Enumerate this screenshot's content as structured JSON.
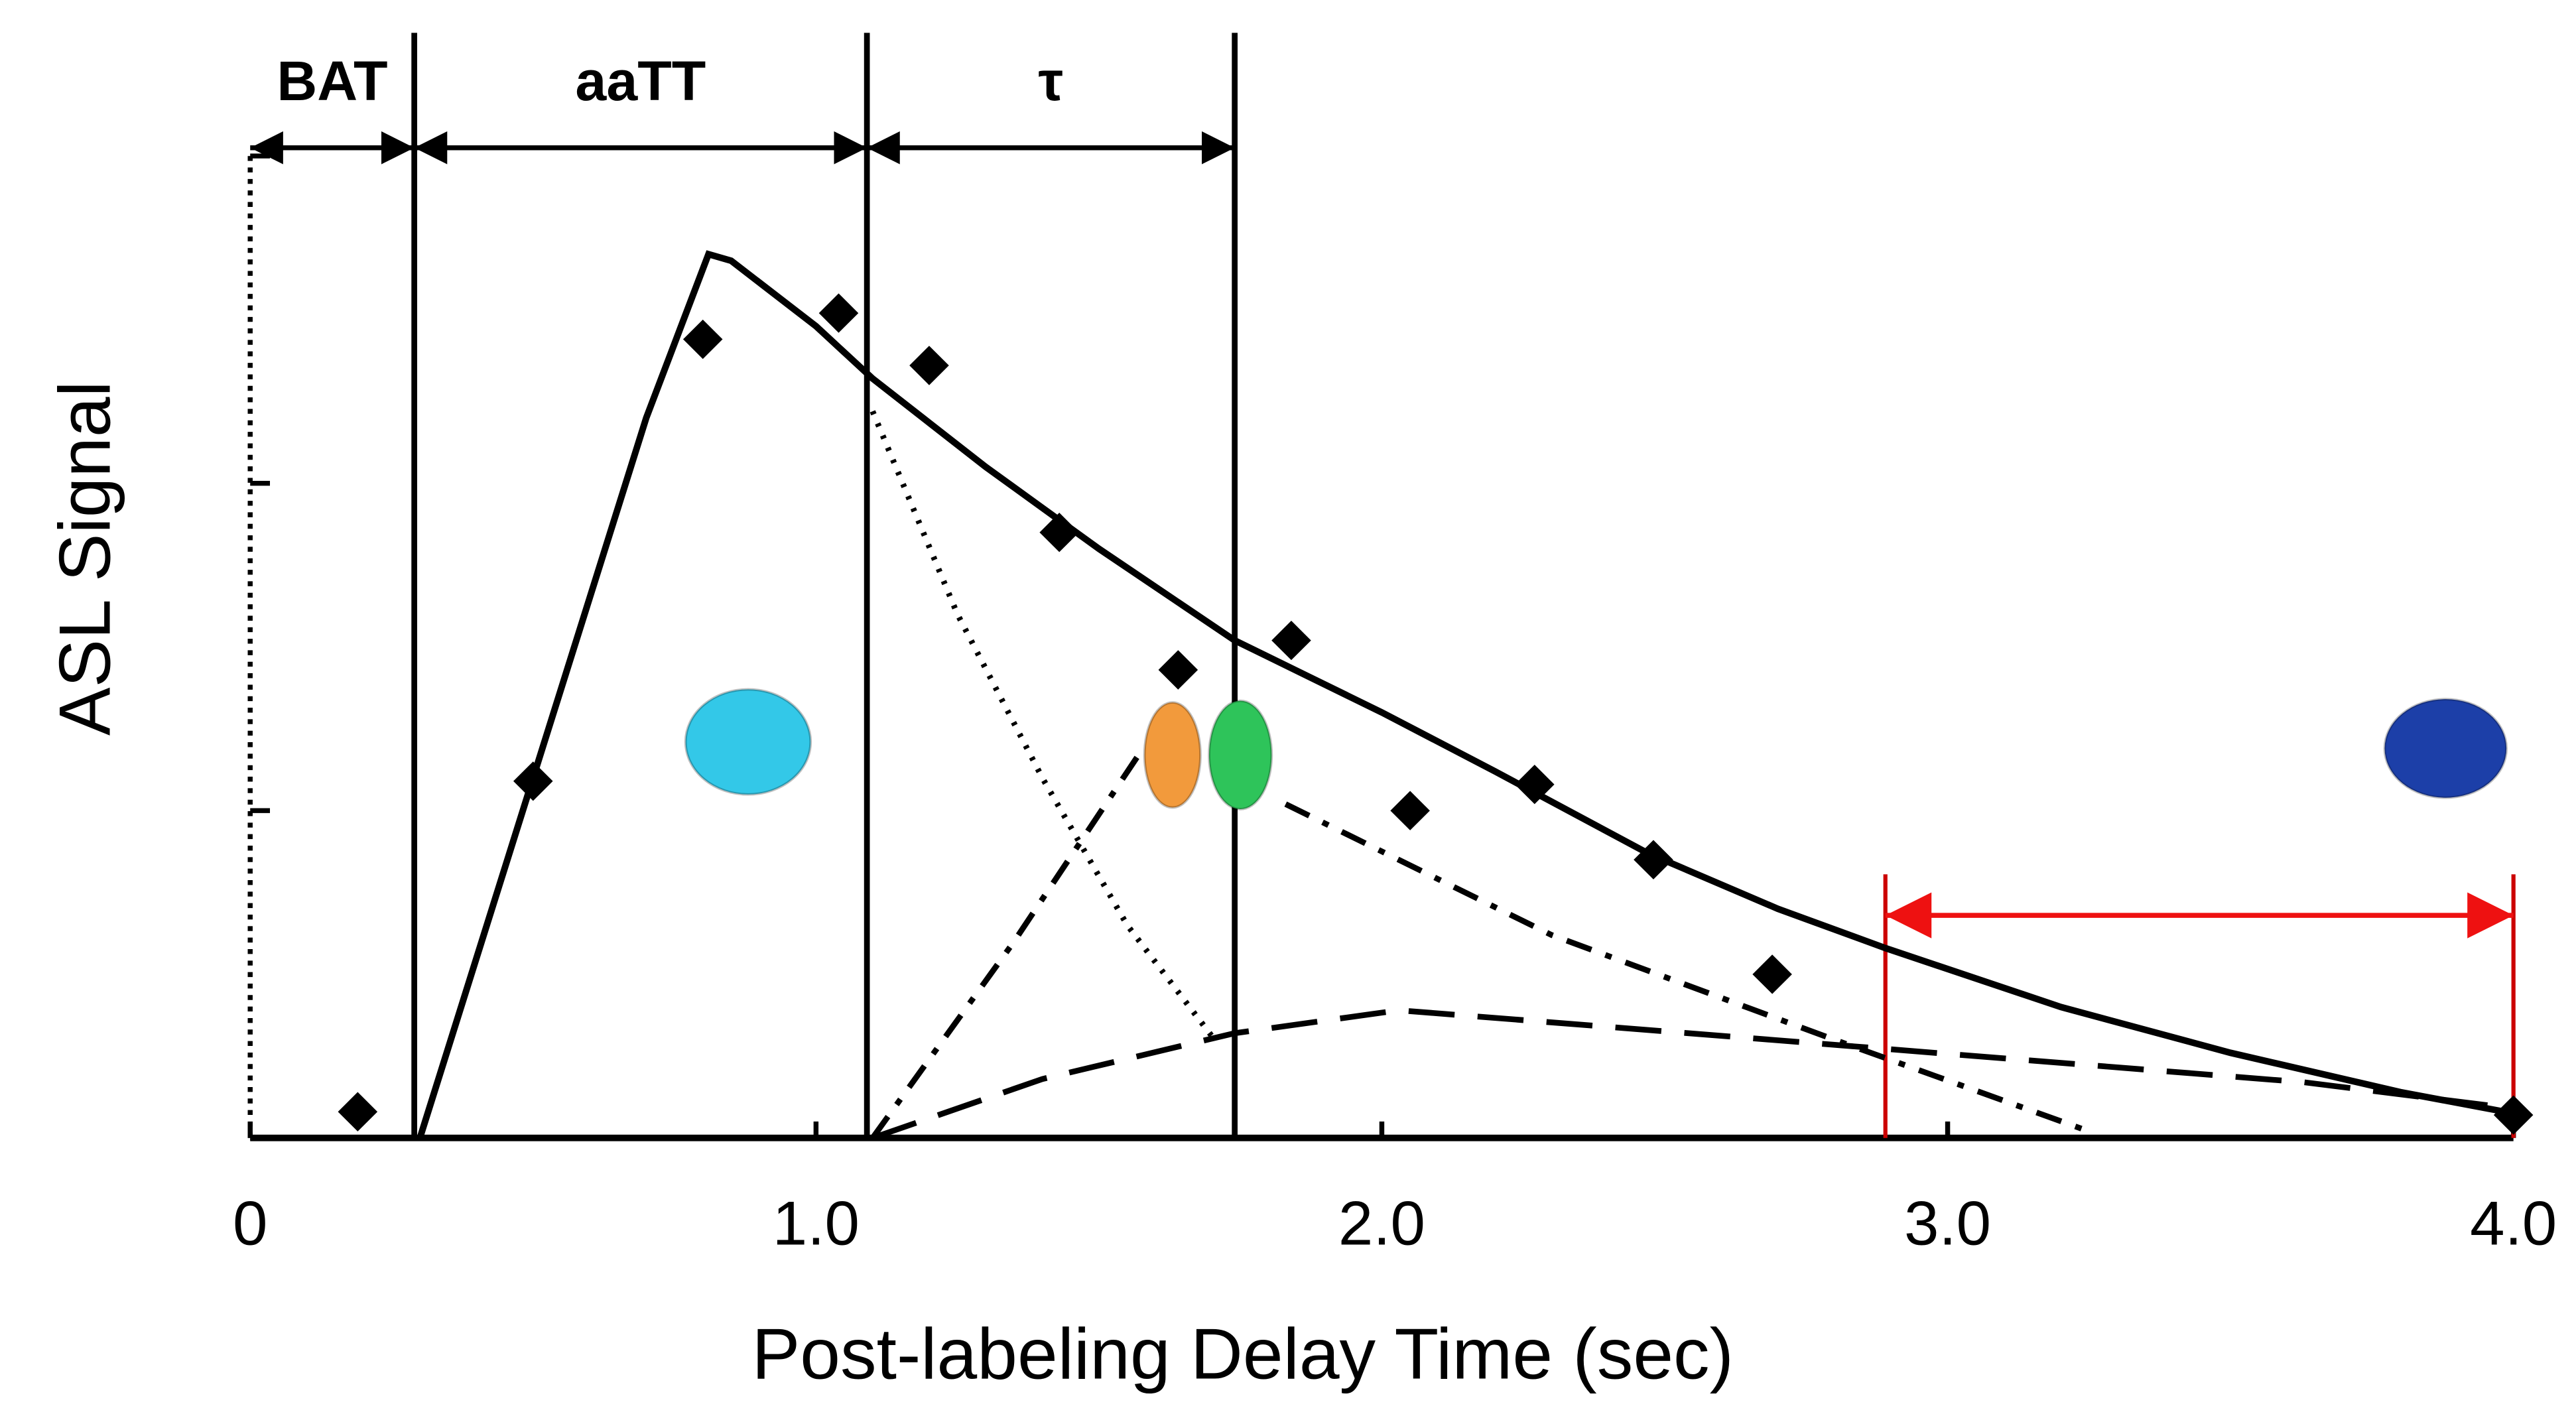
{
  "chart_data": {
    "type": "line",
    "x_label": "Post-labeling Delay Time (sec)",
    "y_label": "ASL Signal",
    "xlim": [
      0,
      4
    ],
    "ylim": [
      0,
      3
    ],
    "xticks": [
      0,
      {
        "value": 1,
        "label": "1.0"
      },
      {
        "value": 2,
        "label": "2.0"
      },
      {
        "value": 3,
        "label": "3.0"
      },
      {
        "value": 4,
        "label": "4.0"
      }
    ],
    "yticks": [
      0,
      1,
      2,
      3
    ],
    "series": [
      {
        "type": "line",
        "style": "solid",
        "color": "#000000",
        "x": [
          0.3,
          0.4,
          0.5,
          0.6,
          0.7,
          0.81,
          0.85,
          1.0,
          1.1,
          1.3,
          1.5,
          1.74,
          2.0,
          2.2,
          2.47,
          2.7,
          2.89,
          3.2,
          3.5,
          3.8,
          4.0
        ],
        "values": [
          0,
          0.55,
          1.1,
          1.65,
          2.2,
          2.7,
          2.68,
          2.48,
          2.32,
          2.05,
          1.8,
          1.52,
          1.3,
          1.12,
          0.87,
          0.7,
          0.58,
          0.4,
          0.26,
          0.14,
          0.075
        ]
      },
      {
        "type": "line",
        "style": "dotted",
        "color": "#000000",
        "x": [
          1.1,
          1.25,
          1.4,
          1.55,
          1.7
        ],
        "values": [
          2.22,
          1.6,
          1.1,
          0.65,
          0.31
        ]
      },
      {
        "type": "line",
        "style": "dashdot",
        "color": "#000000",
        "x": [
          1.1,
          1.35,
          1.57,
          null,
          1.83,
          2.3,
          2.8,
          3.25
        ],
        "values": [
          0,
          0.6,
          1.17,
          null,
          1.02,
          0.62,
          0.3,
          0.02
        ]
      },
      {
        "type": "line",
        "style": "dashed",
        "color": "#000000",
        "x": [
          1.1,
          1.4,
          1.74,
          2.03,
          2.76,
          3.63,
          4.0
        ],
        "values": [
          0,
          0.18,
          0.32,
          0.39,
          0.29,
          0.17,
          0.09
        ]
      },
      {
        "type": "scatter",
        "marker": "diamond",
        "color": "#000000",
        "x": [
          0.19,
          0.5,
          0.8,
          1.04,
          1.2,
          1.43,
          1.64,
          1.84,
          2.05,
          2.27,
          2.48,
          2.69,
          4.0
        ],
        "values": [
          0.08,
          1.09,
          2.44,
          2.52,
          2.36,
          1.85,
          1.43,
          1.52,
          1.0,
          1.08,
          0.85,
          0.5,
          0.07
        ]
      }
    ],
    "vlines": [
      {
        "x": 0.29,
        "color": "#000000"
      },
      {
        "x": 1.09,
        "color": "#000000"
      },
      {
        "x": 1.74,
        "color": "#000000"
      },
      {
        "x": 2.89,
        "color": "#cc0000"
      },
      {
        "x": 4.0,
        "color": "#cc0000"
      }
    ],
    "spans": [
      {
        "label": "BAT",
        "start": 0,
        "end": 0.29
      },
      {
        "label": "aaTT",
        "start": 0.29,
        "end": 1.09
      },
      {
        "label": "τ",
        "start": 1.09,
        "end": 1.74
      }
    ],
    "red_span": {
      "start": 2.89,
      "end": 4.0,
      "y": 0.68,
      "color": "#ee1111"
    },
    "markers": [
      {
        "x": 0.88,
        "y": 1.21,
        "color": "#33c8e8"
      },
      {
        "x": 1.63,
        "y": 1.17,
        "color": "#f29a3c"
      },
      {
        "x": 1.75,
        "y": 1.17,
        "color": "#2ec45a"
      },
      {
        "x": 3.88,
        "y": 1.19,
        "color": "#1c3fa8"
      }
    ]
  }
}
